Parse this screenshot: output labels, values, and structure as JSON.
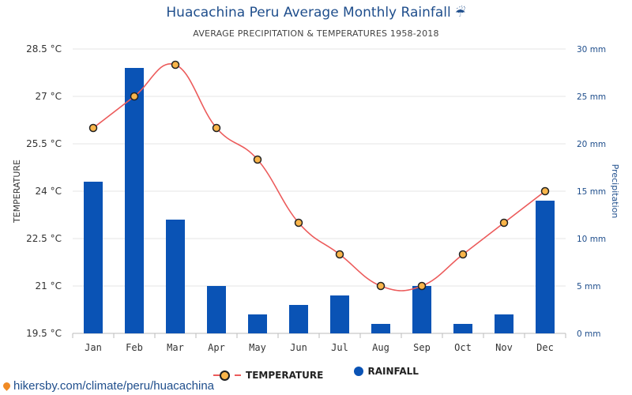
{
  "header": {
    "title": "Huacachina Peru Average Monthly Rainfall",
    "title_icon": "umbrella-icon",
    "subtitle": "AVERAGE PRECIPITATION & TEMPERATURES 1958-2018"
  },
  "legend": {
    "temperature_label": "TEMPERATURE",
    "rainfall_label": "RAINFALL"
  },
  "source_link": "hikersby.com/climate/peru/huacachina",
  "colors": {
    "bar": "#0a53b5",
    "line": "#ec5b5b",
    "marker_fill": "#f9b54a",
    "marker_stroke": "#222222",
    "title": "#1f4e8c"
  },
  "chart_data": {
    "type": "bar",
    "title": "Huacachina Peru Average Monthly Rainfall",
    "subtitle": "AVERAGE PRECIPITATION & TEMPERATURES 1958-2018",
    "categories": [
      "Jan",
      "Feb",
      "Mar",
      "Apr",
      "May",
      "Jun",
      "Jul",
      "Aug",
      "Sep",
      "Oct",
      "Nov",
      "Dec"
    ],
    "series": [
      {
        "name": "RAINFALL",
        "type": "bar",
        "axis": "right",
        "unit": "mm",
        "values": [
          16,
          28,
          12,
          5,
          2,
          3,
          4,
          1,
          5,
          1,
          2,
          14
        ]
      },
      {
        "name": "TEMPERATURE",
        "type": "line",
        "axis": "left",
        "unit": "°C",
        "values": [
          26,
          27,
          28,
          26,
          25,
          23,
          22,
          21,
          21,
          22,
          23,
          24
        ]
      }
    ],
    "y_left": {
      "label": "TEMPERATURE",
      "ylim": [
        19.5,
        28.5
      ],
      "ticks": [
        "19.5 °C",
        "21 °C",
        "22.5 °C",
        "24 °C",
        "25.5 °C",
        "27 °C",
        "28.5 °C"
      ],
      "tick_values": [
        19.5,
        21,
        22.5,
        24,
        25.5,
        27,
        28.5
      ]
    },
    "y_right": {
      "label": "Precipitation",
      "ylim": [
        0,
        30
      ],
      "ticks": [
        "0 mm",
        "5 mm",
        "10 mm",
        "15 mm",
        "20 mm",
        "25 mm",
        "30 mm"
      ],
      "tick_values": [
        0,
        5,
        10,
        15,
        20,
        25,
        30
      ]
    },
    "grid": true,
    "legend_position": "bottom-center"
  }
}
